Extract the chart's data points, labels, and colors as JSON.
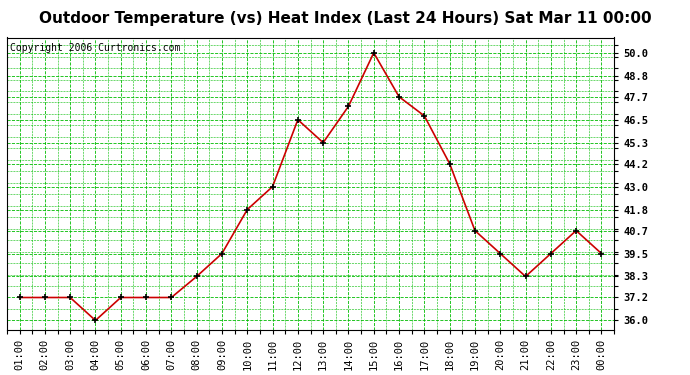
{
  "title": "Outdoor Temperature (vs) Heat Index (Last 24 Hours) Sat Mar 11 00:00",
  "copyright": "Copyright 2006 Curtronics.com",
  "x_labels": [
    "01:00",
    "02:00",
    "03:00",
    "04:00",
    "05:00",
    "06:00",
    "07:00",
    "08:00",
    "09:00",
    "10:00",
    "11:00",
    "12:00",
    "13:00",
    "14:00",
    "15:00",
    "16:00",
    "17:00",
    "18:00",
    "19:00",
    "20:00",
    "21:00",
    "22:00",
    "23:00",
    "00:00"
  ],
  "y_values": [
    37.2,
    37.2,
    37.2,
    36.0,
    37.2,
    37.2,
    37.2,
    38.3,
    39.5,
    41.8,
    43.0,
    46.5,
    45.3,
    47.2,
    50.0,
    47.7,
    46.7,
    44.2,
    40.7,
    39.5,
    38.3,
    39.5,
    40.7,
    39.5
  ],
  "y_tick_labels": [
    "36.0",
    "37.2",
    "38.3",
    "39.5",
    "40.7",
    "41.8",
    "43.0",
    "44.2",
    "45.3",
    "46.5",
    "47.7",
    "48.8",
    "50.0"
  ],
  "y_tick_values": [
    36.0,
    37.2,
    38.3,
    39.5,
    40.7,
    41.8,
    43.0,
    44.2,
    45.3,
    46.5,
    47.7,
    48.8,
    50.0
  ],
  "ylim": [
    35.5,
    50.8
  ],
  "line_color": "#cc0000",
  "marker_color": "black",
  "bg_color": "#ffffff",
  "plot_bg_color": "#ffffff",
  "grid_color": "#00bb00",
  "title_fontsize": 11,
  "tick_fontsize": 7.5,
  "copyright_fontsize": 7
}
